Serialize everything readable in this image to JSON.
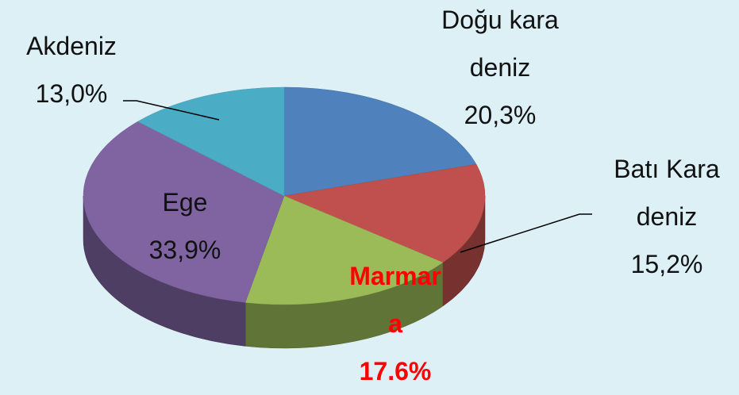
{
  "chart_data": {
    "type": "pie",
    "categories": [
      "Doğu karadeniz",
      "Batı Karadeniz",
      "Marmara",
      "Ege",
      "Akdeniz"
    ],
    "values": [
      20.3,
      15.2,
      17.6,
      33.9,
      13.0
    ],
    "value_labels": [
      "20,3%",
      "15,2%",
      "17.6%",
      "33,9%",
      "13,0%"
    ],
    "colors": [
      "#4f81bd",
      "#c0504d",
      "#9bbb59",
      "#8064a2",
      "#4bacc6"
    ]
  }
}
